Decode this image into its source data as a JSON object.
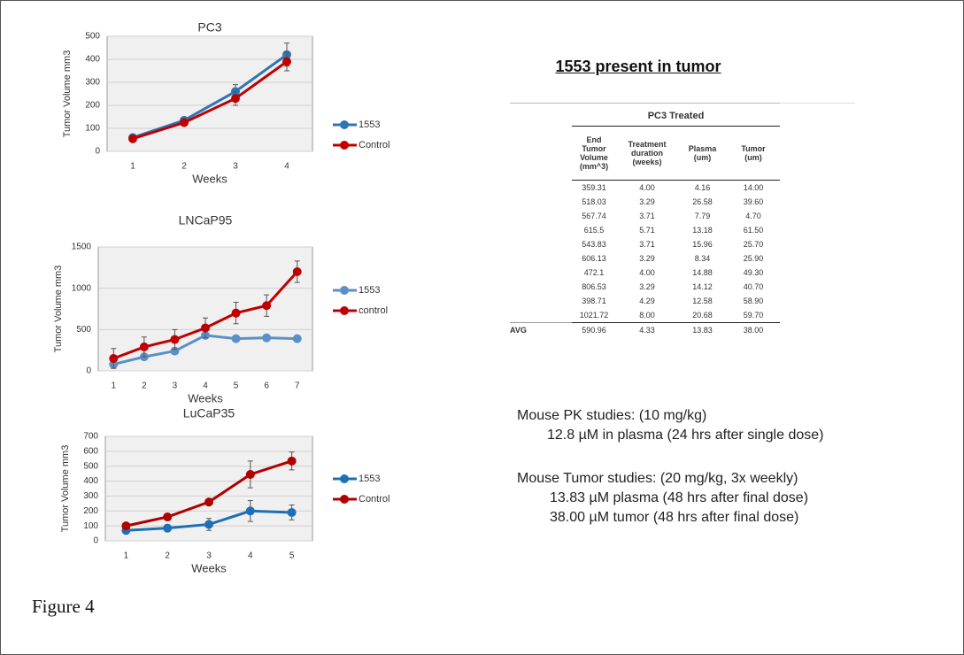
{
  "chart_data": [
    {
      "type": "line",
      "title": "PC3",
      "x_label": "Weeks",
      "y_label": "Tumor Volume mm3",
      "categories": [
        "1",
        "2",
        "3",
        "4"
      ],
      "ylim": [
        0,
        500
      ],
      "yticks": [
        0,
        100,
        200,
        300,
        400,
        500
      ],
      "grid": true,
      "series": [
        {
          "name": "1553",
          "color": "#2e75b6",
          "values": [
            60,
            135,
            260,
            420
          ],
          "errors": [
            5,
            10,
            30,
            50
          ]
        },
        {
          "name": "Control",
          "color": "#c00000",
          "values": [
            55,
            125,
            230,
            390
          ],
          "errors": [
            5,
            10,
            30,
            40
          ]
        }
      ]
    },
    {
      "type": "line",
      "title": "LNCaP95",
      "x_label": "Weeks",
      "y_label": "Tumor Volume mm3",
      "categories": [
        "1",
        "2",
        "3",
        "4",
        "5",
        "6",
        "7"
      ],
      "ylim": [
        0,
        1500
      ],
      "yticks": [
        0,
        500,
        1000,
        1500
      ],
      "grid": true,
      "series": [
        {
          "name": "1553",
          "color": "#5b8fc7",
          "values": [
            80,
            170,
            240,
            430,
            390,
            400,
            390
          ],
          "errors": [
            30,
            20,
            20,
            20,
            20,
            20,
            20
          ]
        },
        {
          "name": "control",
          "color": "#c00000",
          "values": [
            150,
            290,
            380,
            520,
            700,
            790,
            1200
          ],
          "errors": [
            120,
            120,
            120,
            120,
            130,
            130,
            130
          ]
        }
      ]
    },
    {
      "type": "line",
      "title": "LuCaP35",
      "x_label": "Weeks",
      "y_label": "Tumor Volume mm3",
      "categories": [
        "1",
        "2",
        "3",
        "4",
        "5"
      ],
      "ylim": [
        0,
        700
      ],
      "yticks": [
        0,
        100,
        200,
        300,
        400,
        500,
        600,
        700
      ],
      "grid": true,
      "series": [
        {
          "name": "1553",
          "color": "#1f6fb5",
          "values": [
            70,
            85,
            110,
            200,
            190
          ],
          "errors": [
            10,
            20,
            40,
            70,
            50
          ]
        },
        {
          "name": "Control",
          "color": "#b00000",
          "values": [
            100,
            160,
            260,
            445,
            535
          ],
          "errors": [
            10,
            15,
            15,
            90,
            60
          ]
        }
      ]
    }
  ],
  "table": {
    "title": "1553 present in tumor",
    "group_header": "PC3 Treated",
    "columns": [
      "End Tumor Volume (mm^3)",
      "Treatment duration (weeks)",
      "Plasma (um)",
      "Tumor (um)"
    ],
    "rows": [
      [
        "359.31",
        "4.00",
        "4.16",
        "14.00"
      ],
      [
        "518.03",
        "3.29",
        "26.58",
        "39.60"
      ],
      [
        "567.74",
        "3.71",
        "7.79",
        "4.70"
      ],
      [
        "615.5",
        "5.71",
        "13.18",
        "61.50"
      ],
      [
        "543.83",
        "3.71",
        "15.96",
        "25.70"
      ],
      [
        "606.13",
        "3.29",
        "8.34",
        "25.90"
      ],
      [
        "472.1",
        "4.00",
        "14.88",
        "49.30"
      ],
      [
        "806.53",
        "3.29",
        "14.12",
        "40.70"
      ],
      [
        "398.71",
        "4.29",
        "12.58",
        "58.90"
      ],
      [
        "1021.72",
        "8.00",
        "20.68",
        "59.70"
      ]
    ],
    "avg": {
      "label": "AVG",
      "values": [
        "590.96",
        "4.33",
        "13.83",
        "38.00"
      ]
    }
  },
  "notes": [
    "Mouse PK studies: (10 mg/kg)",
    "12.8 µM in plasma (24 hrs after single dose)",
    "Mouse Tumor studies: (20 mg/kg, 3x weekly)",
    "13.83 µM plasma (48 hrs after final dose)",
    "38.00 µM tumor (48 hrs after final dose)"
  ],
  "caption": "Figure 4"
}
